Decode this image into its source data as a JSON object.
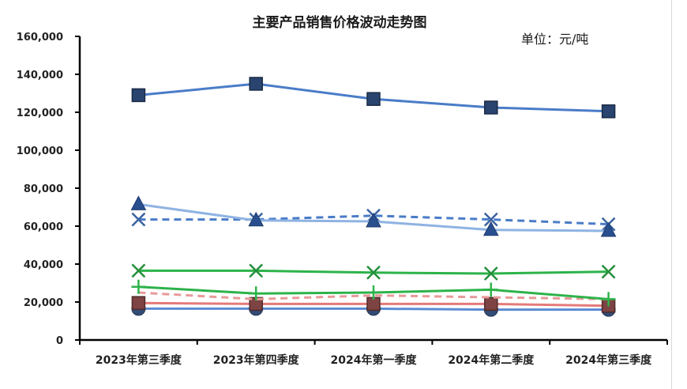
{
  "chart_data": {
    "type": "line",
    "title": "主要产品销售价格波动走势图",
    "unit_label": "单位：元/吨",
    "categories": [
      "2023年第三季度",
      "2023年第四季度",
      "2024年第一季度",
      "2024年第二季度",
      "2024年第三季度"
    ],
    "ylim": [
      0,
      160000
    ],
    "yticks": [
      0,
      20000,
      40000,
      60000,
      80000,
      100000,
      120000,
      140000,
      160000
    ],
    "ytick_labels": [
      "0",
      "20,000",
      "40,000",
      "60,000",
      "80,000",
      "100,000",
      "120,000",
      "140,000",
      "160,000"
    ],
    "grid": false,
    "series": [
      {
        "values": [
          129000,
          135000,
          127000,
          122500,
          120500
        ],
        "color": "#4a7cc8",
        "marker": "square",
        "dash": false,
        "width": 3
      },
      {
        "values": [
          71500,
          63000,
          62500,
          58000,
          57500
        ],
        "color": "#8fb3e3",
        "marker": "triangle",
        "dash": false,
        "width": 3
      },
      {
        "values": [
          63500,
          63500,
          65500,
          63500,
          61000
        ],
        "color": "#4a7cc8",
        "marker": "x",
        "dash": true,
        "width": 3
      },
      {
        "values": [
          36500,
          36500,
          35500,
          35000,
          36000
        ],
        "color": "#2db34a",
        "marker": "x",
        "dash": false,
        "width": 3
      },
      {
        "values": [
          28000,
          24500,
          25000,
          26500,
          21500
        ],
        "color": "#2db34a",
        "marker": "plus",
        "dash": false,
        "width": 3
      },
      {
        "values": [
          25000,
          21500,
          23500,
          22500,
          21500
        ],
        "color": "#e89a9a",
        "marker": "none",
        "dash": true,
        "width": 3
      },
      {
        "values": [
          19500,
          19000,
          19000,
          19000,
          18000
        ],
        "color": "#e57a7a",
        "marker": "square",
        "dash": false,
        "width": 3
      },
      {
        "values": [
          16500,
          16500,
          16500,
          16000,
          16000
        ],
        "color": "#5b8bd4",
        "marker": "circle",
        "dash": false,
        "width": 3
      }
    ]
  }
}
